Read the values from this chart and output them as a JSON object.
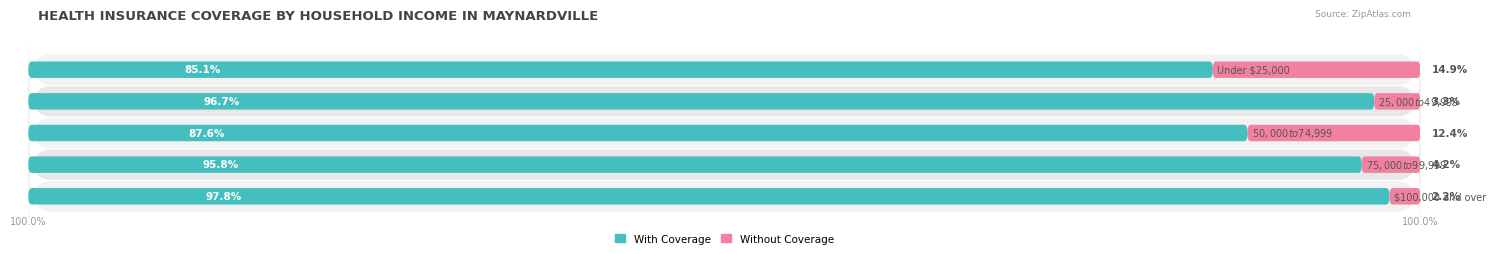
{
  "title": "HEALTH INSURANCE COVERAGE BY HOUSEHOLD INCOME IN MAYNARDVILLE",
  "source": "Source: ZipAtlas.com",
  "categories": [
    "Under $25,000",
    "$25,000 to $49,999",
    "$50,000 to $74,999",
    "$75,000 to $99,999",
    "$100,000 and over"
  ],
  "with_coverage": [
    85.1,
    96.7,
    87.6,
    95.8,
    97.8
  ],
  "without_coverage": [
    14.9,
    3.3,
    12.4,
    4.2,
    2.2
  ],
  "color_with": "#45BEC0",
  "color_without": "#F280A1",
  "row_bg_light": "#F2F2F2",
  "row_bg_dark": "#E8E8E8",
  "label_color_with": "#FFFFFF",
  "category_label_color": "#555555",
  "axis_label_color": "#999999",
  "title_fontsize": 9.5,
  "bar_fontsize": 7.5,
  "category_fontsize": 7,
  "woc_fontsize": 7.5,
  "legend_fontsize": 7.5,
  "axis_tick_fontsize": 7,
  "bar_height": 0.52,
  "xlim": [
    0,
    100
  ]
}
